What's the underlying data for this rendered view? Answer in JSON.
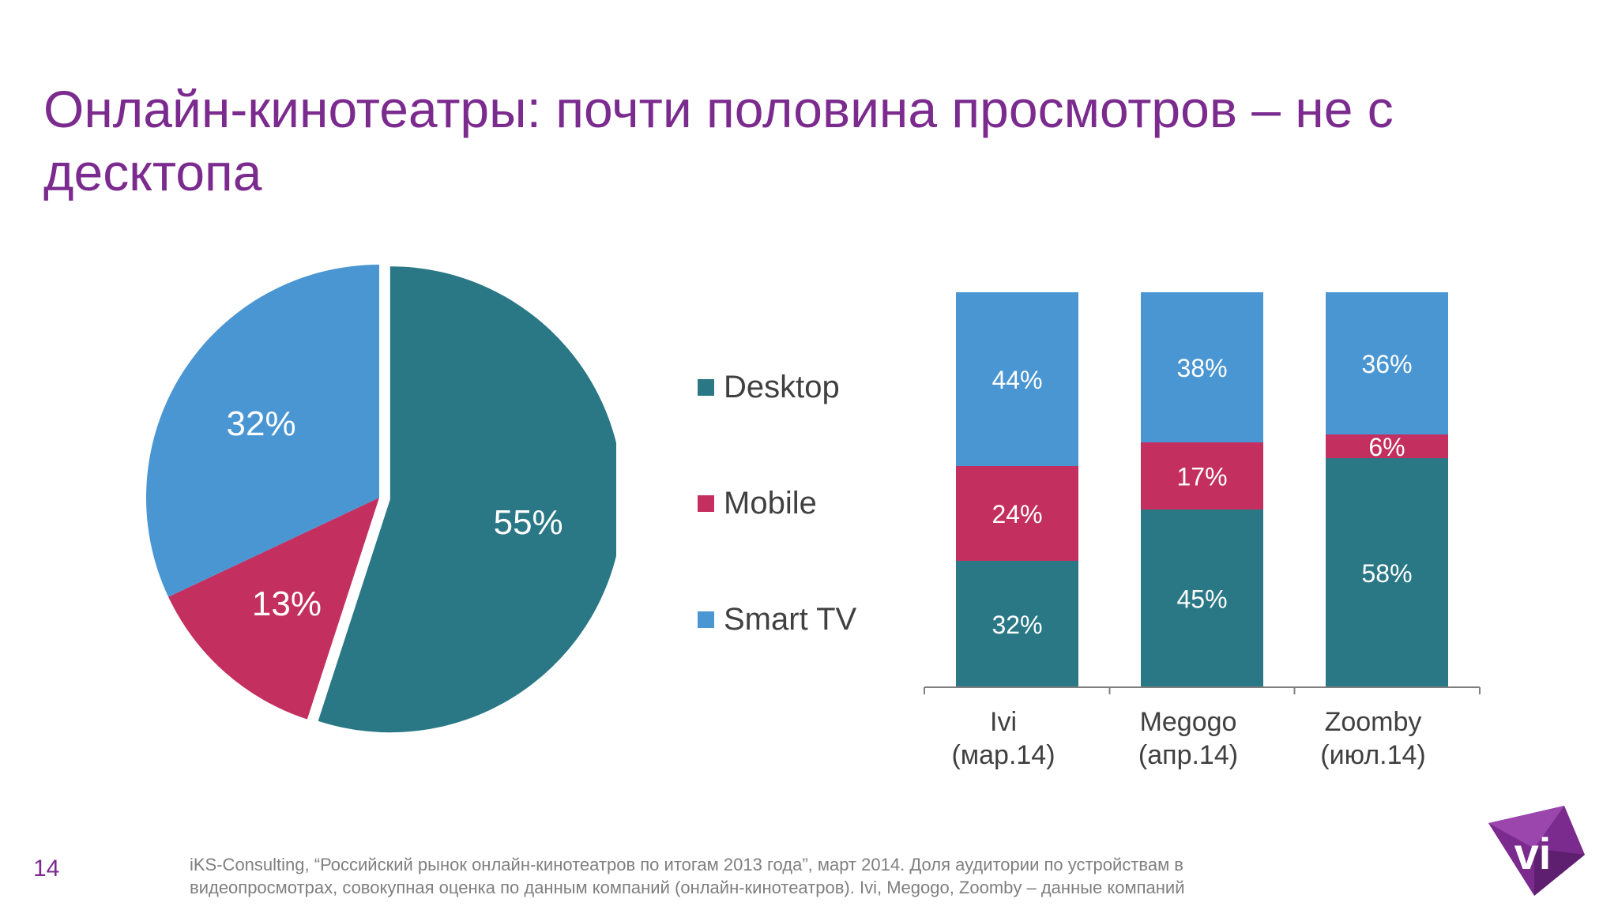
{
  "title": "Онлайн-кинотеатры: почти половина просмотров – не с десктопа",
  "page_number": "14",
  "source_text": "iKS-Consulting, “Российский рынок онлайн-кинотеатров по итогам 2013 года”, март 2014. Доля аудитории по устройствам в видеопросмотрах, совокупная оценка по данным компаний (онлайн-кинотеатров). Ivi, Megogo, Zoomby – данные компаний",
  "logo": {
    "text": "vi",
    "icon": "vi-logo-icon"
  },
  "colors": {
    "desktop": "#2a7886",
    "mobile": "#c3305f",
    "smart_tv": "#4a96d2",
    "title": "#7b2a8e"
  },
  "chart_data": [
    {
      "type": "pie",
      "categories": [
        "Desktop",
        "Mobile",
        "Smart TV"
      ],
      "values": [
        55,
        13,
        32
      ],
      "labels": [
        "55%",
        "13%",
        "32%"
      ],
      "exploded": "Desktop"
    },
    {
      "type": "bar",
      "stacked": true,
      "categories": [
        "Ivi\n(мар.14)",
        "Megogo\n(апр.14)",
        "Zoomby\n(июл.14)"
      ],
      "series": [
        {
          "name": "Desktop",
          "values": [
            32,
            45,
            58
          ],
          "labels": [
            "32%",
            "45%",
            "58%"
          ]
        },
        {
          "name": "Mobile",
          "values": [
            24,
            17,
            6
          ],
          "labels": [
            "24%",
            "17%",
            "6%"
          ]
        },
        {
          "name": "Smart TV",
          "values": [
            44,
            38,
            36
          ],
          "labels": [
            "44%",
            "38%",
            "36%"
          ]
        }
      ],
      "ylim": [
        0,
        100
      ],
      "legend": "left",
      "grid": false
    }
  ]
}
